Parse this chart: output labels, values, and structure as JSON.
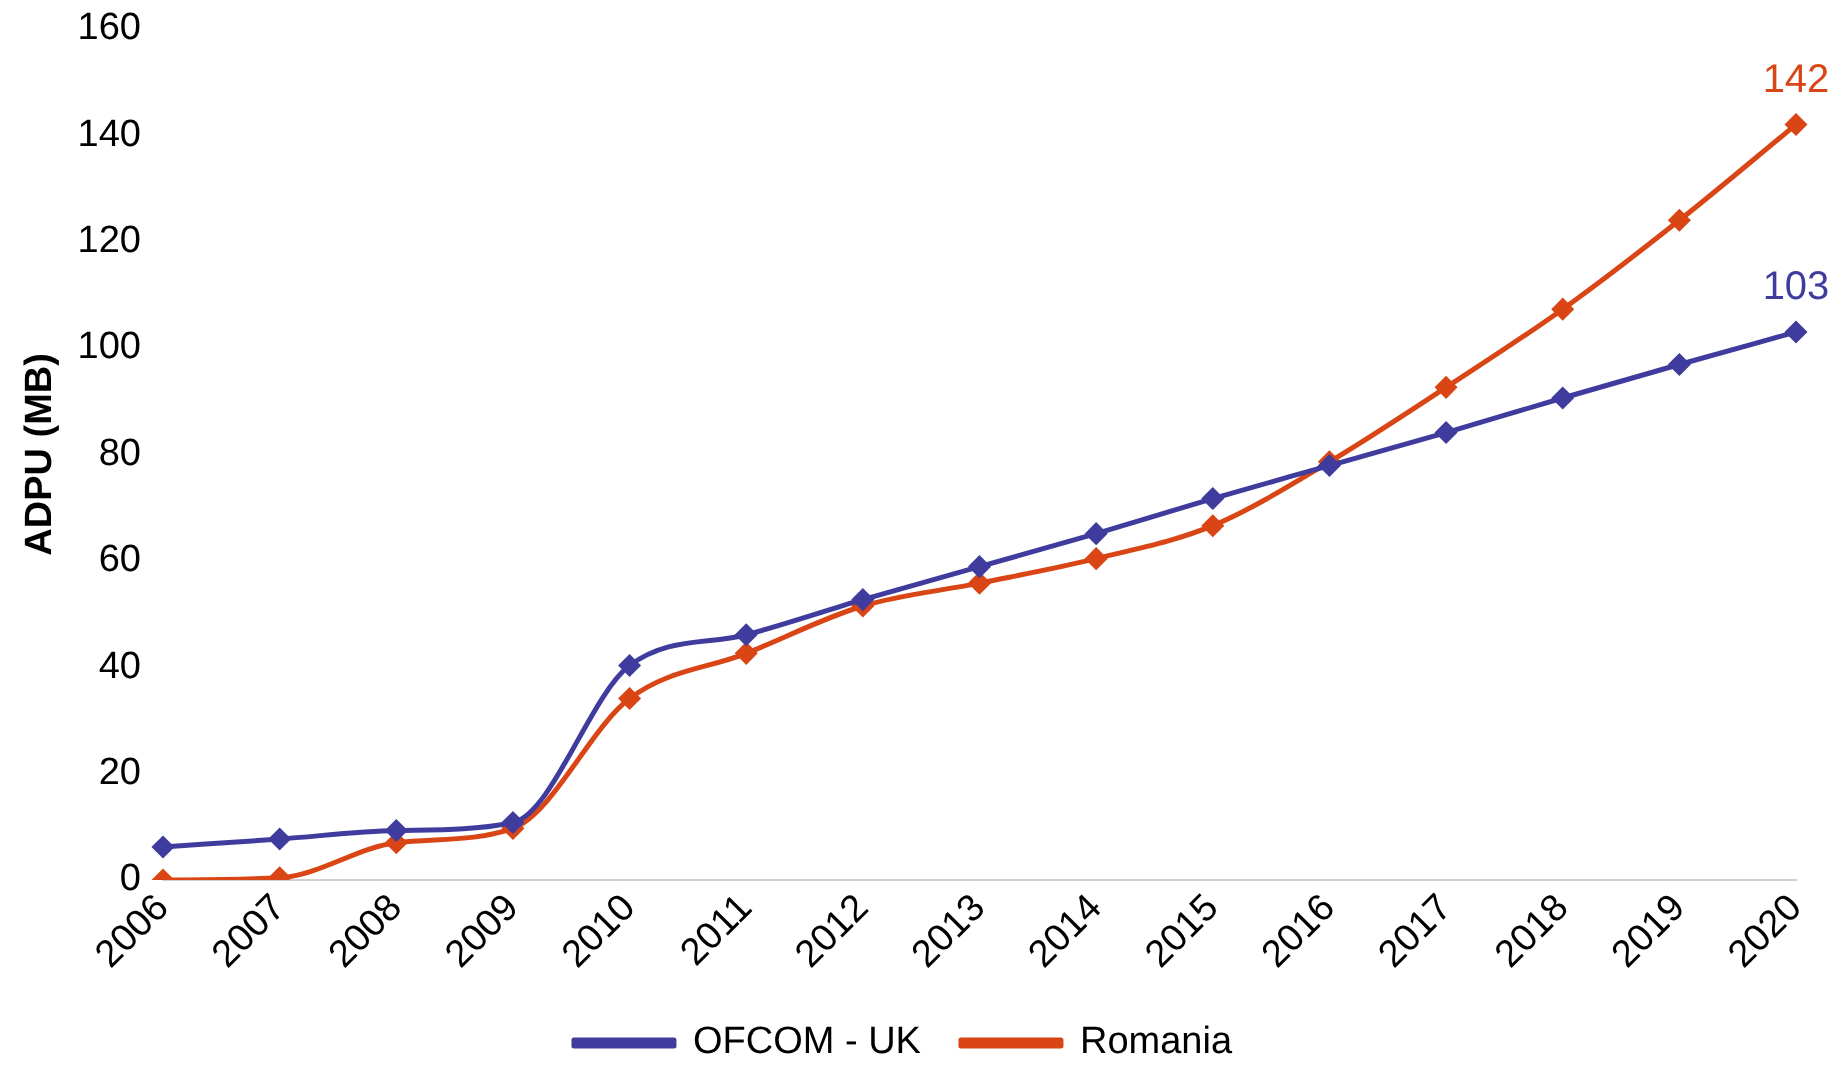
{
  "chart_data": {
    "type": "line",
    "ylabel": "ADPU (MB)",
    "categories": [
      "2006",
      "2007",
      "2008",
      "2009",
      "2010",
      "2011",
      "2012",
      "2013",
      "2014",
      "2015",
      "2016",
      "2017",
      "2018",
      "2019",
      "2020"
    ],
    "series": [
      {
        "name": "OFCOM - UK",
        "color": "#3f3c9e",
        "values": [
          6.2,
          7.7,
          9.3,
          10.8,
          40.3,
          46.1,
          52.7,
          58.9,
          65.1,
          71.7,
          77.9,
          84.1,
          90.6,
          96.9,
          103
        ]
      },
      {
        "name": "Romania",
        "color": "#d94514",
        "values": [
          0,
          0.4,
          7,
          9.7,
          34.1,
          42.6,
          51.5,
          55.8,
          60.4,
          66.6,
          78.6,
          92.6,
          107.3,
          124,
          142
        ]
      }
    ],
    "ylim": [
      0,
      160
    ],
    "yticks": [
      0,
      20,
      40,
      60,
      80,
      100,
      120,
      140,
      160
    ],
    "grid": false,
    "legend": "bottom",
    "marker": "diamond",
    "line_style": "solid",
    "annotations": [
      {
        "text": "142",
        "x": "2020",
        "y": 142
      },
      {
        "text": "103",
        "x": "2020",
        "y": 103
      }
    ]
  }
}
